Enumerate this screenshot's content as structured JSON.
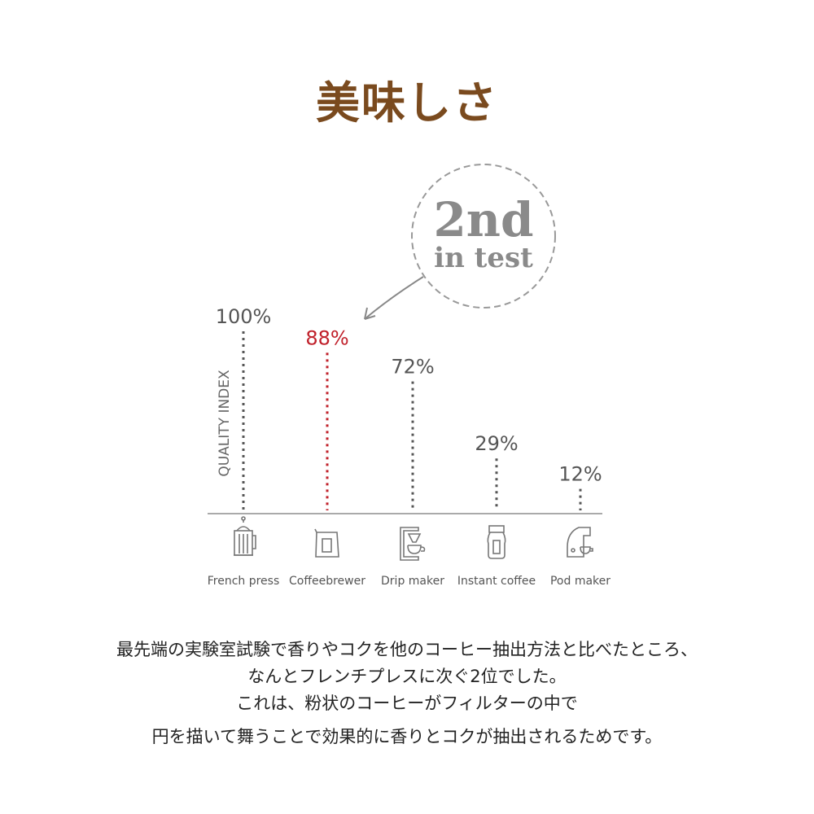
{
  "title": "美味しさ",
  "badge": {
    "line1": "2nd",
    "line2": "in test"
  },
  "chart_data": {
    "type": "bar",
    "ylabel": "QUALITY INDEX",
    "ylim": [
      0,
      100
    ],
    "categories": [
      "French press",
      "Coffeebrewer",
      "Drip maker",
      "Instant coffee",
      "Pod maker"
    ],
    "values": [
      100,
      88,
      72,
      29,
      12
    ],
    "value_labels": [
      "100%",
      "88%",
      "72%",
      "29%",
      "12%"
    ],
    "icons": [
      "french-press-icon",
      "coffee-bag-icon",
      "drip-maker-icon",
      "instant-coffee-jar-icon",
      "pod-maker-icon"
    ],
    "highlight_index": 1,
    "colors": {
      "default": "#555555",
      "highlight": "#c0202a",
      "axis": "#999999"
    }
  },
  "description": [
    "最先端の実験室試験で香りやコクを他のコーヒー抽出方法と比べたところ、",
    "なんとフレンチプレスに次ぐ2位でした。",
    "これは、粉状のコーヒーがフィルターの中で",
    "円を描いて舞うことで効果的に香りとコクが抽出されるためです。"
  ]
}
